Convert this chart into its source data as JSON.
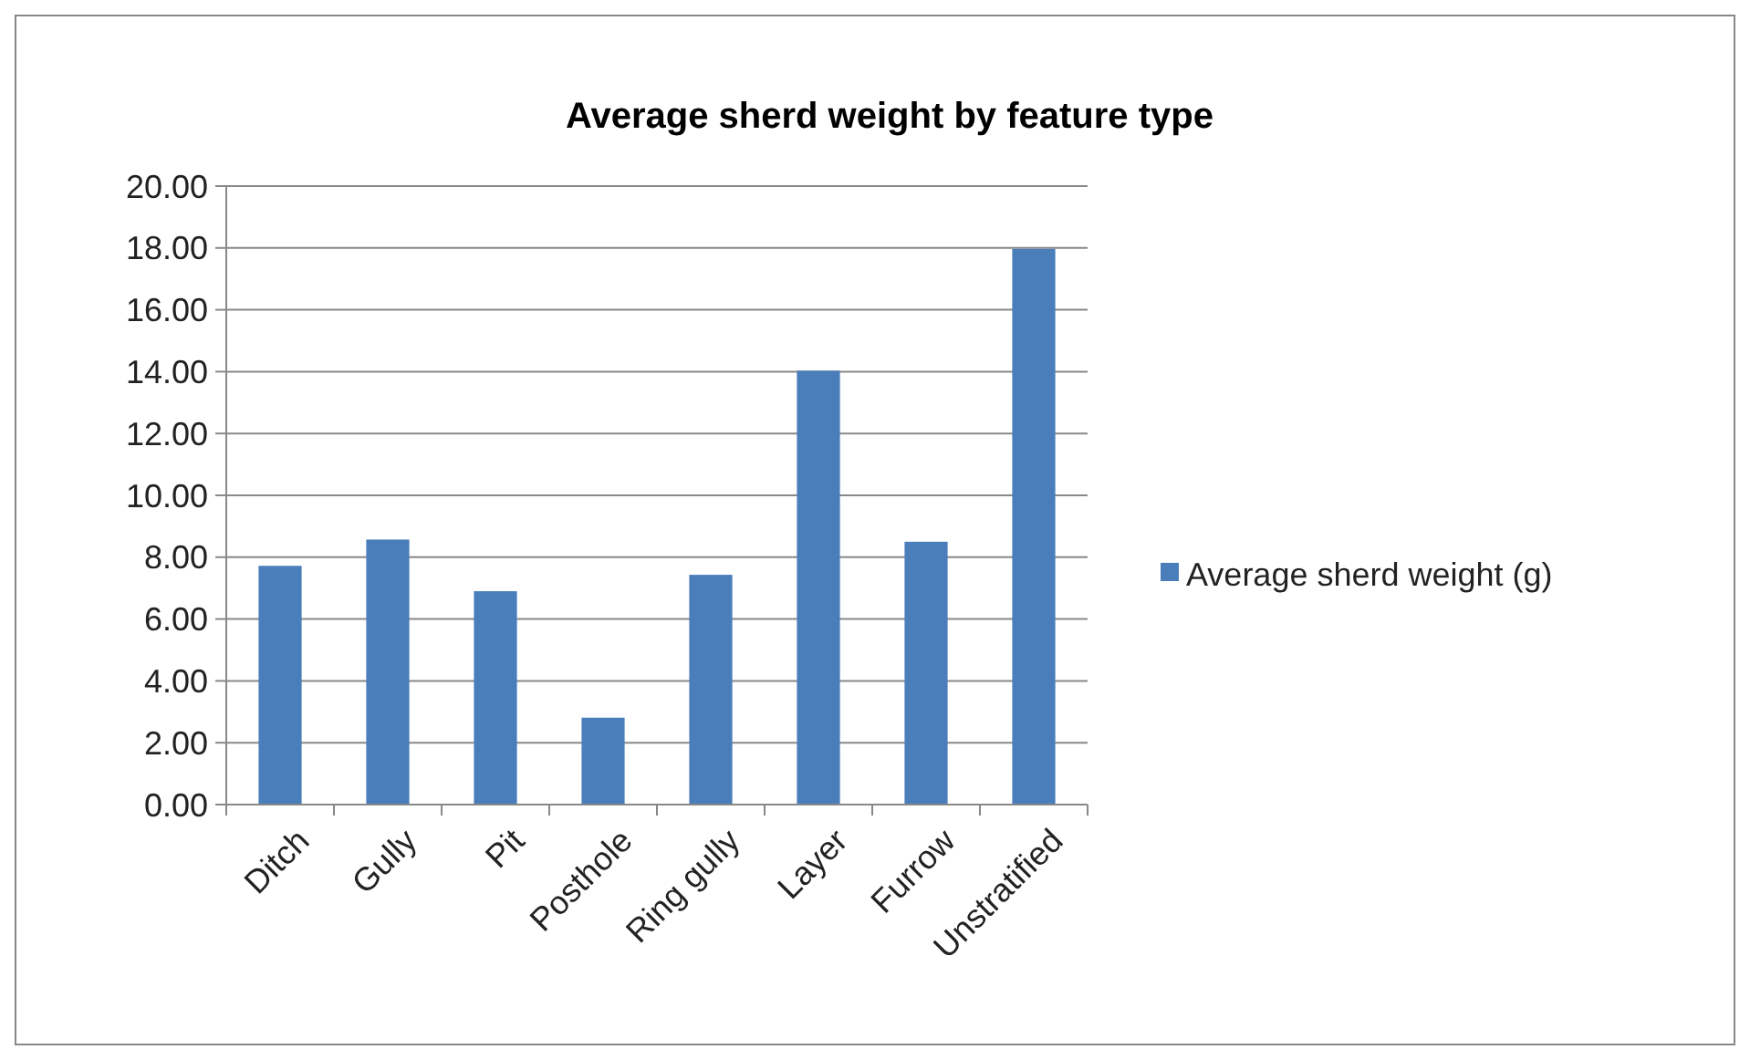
{
  "chart_data": {
    "type": "bar",
    "title": "Average sherd weight by feature type",
    "categories": [
      "Ditch",
      "Gully",
      "Pit",
      "Posthole",
      "Ring gully",
      "Layer",
      "Furrow",
      "Unstratified"
    ],
    "series": [
      {
        "name": "Average sherd weight (g)",
        "color": "#4a7ebb",
        "values": [
          7.72,
          8.57,
          6.9,
          2.81,
          7.43,
          14.03,
          8.5,
          17.97
        ]
      }
    ],
    "ylim": [
      0,
      20
    ],
    "yticks": [
      {
        "value": 0,
        "label": "0.00"
      },
      {
        "value": 2,
        "label": "2.00"
      },
      {
        "value": 4,
        "label": "4.00"
      },
      {
        "value": 6,
        "label": "6.00"
      },
      {
        "value": 8,
        "label": "8.00"
      },
      {
        "value": 10,
        "label": "10.00"
      },
      {
        "value": 12,
        "label": "12.00"
      },
      {
        "value": 14,
        "label": "14.00"
      },
      {
        "value": 16,
        "label": "16.00"
      },
      {
        "value": 18,
        "label": "18.00"
      },
      {
        "value": 20,
        "label": "20.00"
      }
    ],
    "grid": "y",
    "legend": "right"
  }
}
